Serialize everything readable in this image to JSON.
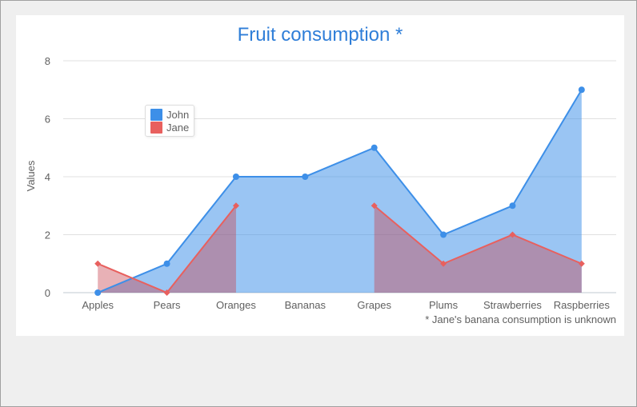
{
  "chart_data": {
    "type": "area",
    "title": "Fruit consumption *",
    "xlabel": "",
    "ylabel": "Values",
    "categories": [
      "Apples",
      "Pears",
      "Oranges",
      "Bananas",
      "Grapes",
      "Plums",
      "Strawberries",
      "Raspberries"
    ],
    "ylim": [
      0,
      8
    ],
    "yticks": [
      "0",
      "2",
      "4",
      "6",
      "8"
    ],
    "grid": true,
    "legend_position": "top-left",
    "series": [
      {
        "name": "John",
        "color": "#3d8fe8",
        "marker": "circle",
        "values": [
          0,
          1,
          4,
          4,
          5,
          2,
          3,
          7
        ]
      },
      {
        "name": "Jane",
        "color": "#e8605e",
        "marker": "diamond",
        "values": [
          1,
          0,
          3,
          null,
          3,
          1,
          2,
          1
        ]
      }
    ],
    "footnote": "* Jane's banana consumption is unknown"
  }
}
